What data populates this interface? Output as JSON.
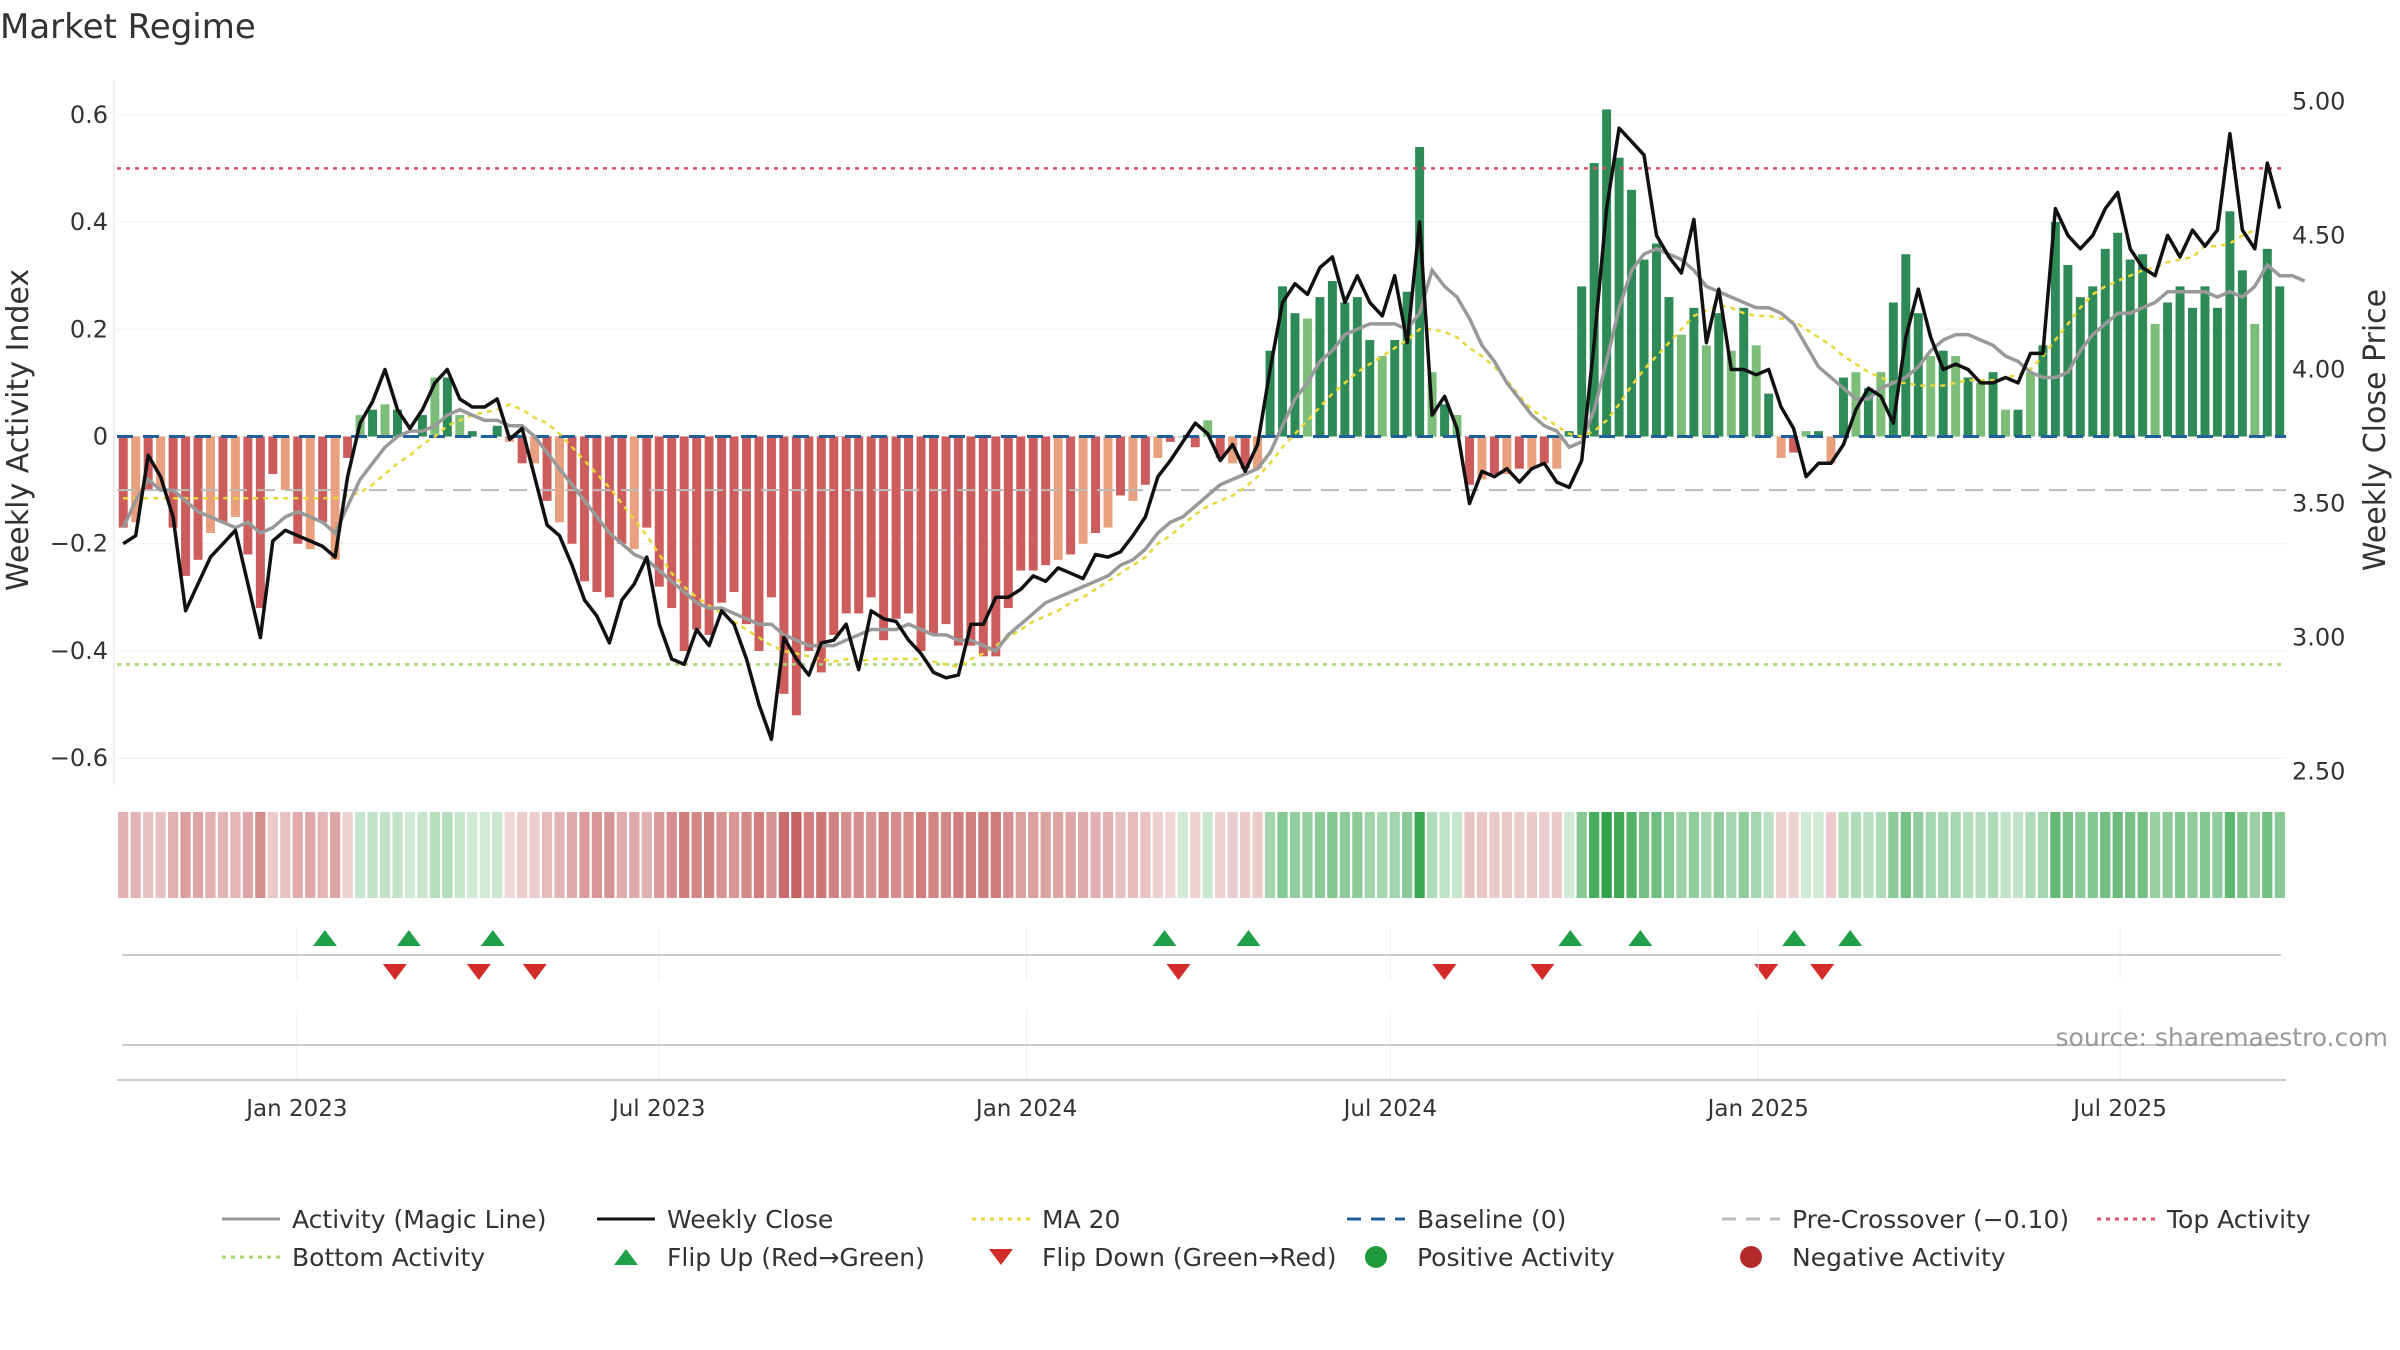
{
  "chart_data": {
    "type": "bar",
    "title": "Market Regime",
    "ylabel_left": "Weekly Activity Index",
    "ylabel_right": "Weekly Close Price",
    "ylim_left": [
      -0.65,
      0.65
    ],
    "yticks_left": [
      "0.6",
      "0.4",
      "0.2",
      "0",
      "−0.2",
      "−0.4",
      "−0.6"
    ],
    "ylim_right": [
      2.45,
      5.05
    ],
    "yticks_right": [
      "5.00",
      "4.50",
      "4.00",
      "3.50",
      "3.00",
      "2.50"
    ],
    "x_start": "2022-10-03",
    "x_end": "2025-09-22",
    "x_ticks": [
      "Jan 2023",
      "Jul 2023",
      "Jan 2024",
      "Jul 2024",
      "Jan 2025",
      "Jul 2025"
    ],
    "x_tick_dates": [
      "2023-01-01",
      "2023-07-01",
      "2024-01-01",
      "2024-07-01",
      "2025-01-01",
      "2025-07-01"
    ],
    "top_activity": 0.5,
    "bottom_activity": -0.425,
    "baseline": 0,
    "pre_crossover": -0.1,
    "activity": [
      -0.17,
      -0.16,
      -0.1,
      -0.1,
      -0.17,
      -0.26,
      -0.23,
      -0.18,
      -0.16,
      -0.15,
      -0.22,
      -0.32,
      -0.07,
      -0.1,
      -0.2,
      -0.21,
      -0.16,
      -0.23,
      -0.04,
      0.04,
      0.05,
      0.06,
      0.05,
      0.0,
      0.04,
      0.11,
      0.11,
      0.04,
      0.01,
      0.0,
      0.02,
      -0.01,
      -0.05,
      -0.05,
      -0.12,
      -0.16,
      -0.2,
      -0.27,
      -0.29,
      -0.3,
      -0.2,
      -0.21,
      -0.17,
      -0.28,
      -0.32,
      -0.4,
      -0.36,
      -0.37,
      -0.31,
      -0.29,
      -0.35,
      -0.4,
      -0.3,
      -0.48,
      -0.52,
      -0.4,
      -0.44,
      -0.37,
      -0.33,
      -0.33,
      -0.3,
      -0.38,
      -0.34,
      -0.33,
      -0.4,
      -0.37,
      -0.35,
      -0.39,
      -0.39,
      -0.41,
      -0.41,
      -0.32,
      -0.25,
      -0.25,
      -0.24,
      -0.23,
      -0.22,
      -0.2,
      -0.18,
      -0.17,
      -0.11,
      -0.12,
      -0.09,
      -0.04,
      -0.01,
      0.0,
      -0.02,
      0.03,
      -0.04,
      -0.05,
      -0.06,
      -0.06,
      0.16,
      0.28,
      0.23,
      0.22,
      0.26,
      0.29,
      0.25,
      0.26,
      0.18,
      0.15,
      0.18,
      0.27,
      0.54,
      0.12,
      0.06,
      0.04,
      -0.09,
      -0.08,
      -0.07,
      -0.07,
      -0.06,
      -0.06,
      -0.05,
      -0.06,
      0.01,
      0.28,
      0.51,
      0.61,
      0.52,
      0.46,
      0.33,
      0.36,
      0.26,
      0.19,
      0.24,
      0.17,
      0.23,
      0.16,
      0.24,
      0.17,
      0.08,
      -0.04,
      -0.03,
      0.01,
      0.01,
      -0.05,
      0.11,
      0.12,
      0.09,
      0.12,
      0.25,
      0.34,
      0.23,
      0.15,
      0.16,
      0.15,
      0.11,
      0.1,
      0.12,
      0.05,
      0.05,
      0.12,
      0.17,
      0.4,
      0.32,
      0.26,
      0.28,
      0.35,
      0.38,
      0.33,
      0.34,
      0.21,
      0.25,
      0.28,
      0.24,
      0.28,
      0.24,
      0.42,
      0.31,
      0.21,
      0.35,
      0.28
    ],
    "magic_line": [
      -0.17,
      -0.12,
      -0.08,
      -0.1,
      -0.1,
      -0.12,
      -0.14,
      -0.15,
      -0.16,
      -0.17,
      -0.16,
      -0.18,
      -0.17,
      -0.15,
      -0.14,
      -0.15,
      -0.16,
      -0.18,
      -0.13,
      -0.08,
      -0.05,
      -0.02,
      0.0,
      0.01,
      0.01,
      0.02,
      0.04,
      0.05,
      0.04,
      0.03,
      0.03,
      0.02,
      0.02,
      0.0,
      -0.03,
      -0.06,
      -0.09,
      -0.12,
      -0.15,
      -0.18,
      -0.2,
      -0.22,
      -0.23,
      -0.25,
      -0.27,
      -0.29,
      -0.31,
      -0.32,
      -0.32,
      -0.33,
      -0.34,
      -0.35,
      -0.35,
      -0.37,
      -0.38,
      -0.39,
      -0.39,
      -0.39,
      -0.38,
      -0.37,
      -0.36,
      -0.36,
      -0.36,
      -0.35,
      -0.36,
      -0.37,
      -0.37,
      -0.38,
      -0.38,
      -0.39,
      -0.4,
      -0.37,
      -0.35,
      -0.33,
      -0.31,
      -0.3,
      -0.29,
      -0.28,
      -0.27,
      -0.26,
      -0.24,
      -0.23,
      -0.21,
      -0.18,
      -0.16,
      -0.15,
      -0.13,
      -0.11,
      -0.09,
      -0.08,
      -0.07,
      -0.06,
      -0.03,
      0.02,
      0.07,
      0.1,
      0.14,
      0.16,
      0.19,
      0.2,
      0.21,
      0.21,
      0.21,
      0.2,
      0.23,
      0.31,
      0.28,
      0.26,
      0.22,
      0.17,
      0.14,
      0.1,
      0.07,
      0.04,
      0.02,
      0.01,
      -0.02,
      -0.01,
      0.05,
      0.14,
      0.24,
      0.31,
      0.34,
      0.35,
      0.34,
      0.33,
      0.31,
      0.28,
      0.27,
      0.26,
      0.25,
      0.24,
      0.24,
      0.23,
      0.21,
      0.17,
      0.13,
      0.11,
      0.09,
      0.07,
      0.07,
      0.09,
      0.1,
      0.11,
      0.13,
      0.16,
      0.18,
      0.19,
      0.19,
      0.18,
      0.17,
      0.15,
      0.14,
      0.12,
      0.11,
      0.11,
      0.12,
      0.16,
      0.19,
      0.21,
      0.23,
      0.23,
      0.24,
      0.25,
      0.27,
      0.27,
      0.27,
      0.27,
      0.26,
      0.27,
      0.26,
      0.28,
      0.32,
      0.3,
      0.3,
      0.29
    ],
    "weekly_close": [
      3.35,
      3.38,
      3.68,
      3.6,
      3.45,
      3.1,
      3.2,
      3.3,
      3.35,
      3.4,
      3.2,
      3.0,
      3.36,
      3.4,
      3.38,
      3.36,
      3.34,
      3.3,
      3.6,
      3.8,
      3.88,
      4.0,
      3.85,
      3.78,
      3.85,
      3.95,
      4.0,
      3.89,
      3.86,
      3.86,
      3.89,
      3.74,
      3.78,
      3.6,
      3.42,
      3.38,
      3.27,
      3.14,
      3.08,
      2.98,
      3.14,
      3.2,
      3.3,
      3.05,
      2.92,
      2.9,
      3.03,
      2.97,
      3.1,
      3.05,
      2.92,
      2.75,
      2.62,
      3.0,
      2.92,
      2.86,
      2.98,
      2.99,
      3.05,
      2.88,
      3.1,
      3.07,
      3.06,
      2.99,
      2.94,
      2.87,
      2.85,
      2.86,
      3.05,
      3.05,
      3.15,
      3.15,
      3.18,
      3.23,
      3.21,
      3.26,
      3.24,
      3.22,
      3.31,
      3.3,
      3.32,
      3.38,
      3.45,
      3.6,
      3.66,
      3.73,
      3.8,
      3.76,
      3.66,
      3.72,
      3.62,
      3.72,
      4.0,
      4.25,
      4.32,
      4.28,
      4.38,
      4.42,
      4.25,
      4.35,
      4.25,
      4.2,
      4.35,
      4.1,
      4.55,
      3.83,
      3.9,
      3.78,
      3.5,
      3.62,
      3.6,
      3.63,
      3.58,
      3.63,
      3.65,
      3.58,
      3.56,
      3.66,
      4.1,
      4.6,
      4.9,
      4.85,
      4.8,
      4.5,
      4.42,
      4.36,
      4.56,
      4.1,
      4.3,
      4.0,
      4.0,
      3.98,
      4.0,
      3.86,
      3.78,
      3.6,
      3.65,
      3.65,
      3.72,
      3.85,
      3.93,
      3.9,
      3.8,
      4.12,
      4.3,
      4.12,
      4.0,
      4.02,
      4.0,
      3.95,
      3.95,
      3.97,
      3.95,
      4.06,
      4.06,
      4.6,
      4.5,
      4.45,
      4.5,
      4.6,
      4.66,
      4.45,
      4.38,
      4.35,
      4.5,
      4.42,
      4.52,
      4.46,
      4.52,
      4.88,
      4.52,
      4.45,
      4.77,
      4.6
    ],
    "ma20": [
      3.52,
      3.52,
      3.52,
      3.52,
      3.52,
      3.52,
      3.52,
      3.52,
      3.52,
      3.52,
      3.52,
      3.52,
      3.52,
      3.52,
      3.52,
      3.52,
      3.52,
      3.52,
      3.53,
      3.54,
      3.57,
      3.61,
      3.65,
      3.68,
      3.72,
      3.75,
      3.79,
      3.81,
      3.83,
      3.84,
      3.85,
      3.87,
      3.85,
      3.82,
      3.8,
      3.76,
      3.71,
      3.66,
      3.61,
      3.56,
      3.5,
      3.44,
      3.38,
      3.31,
      3.24,
      3.19,
      3.15,
      3.12,
      3.09,
      3.06,
      3.03,
      3.0,
      2.97,
      2.95,
      2.94,
      2.93,
      2.92,
      2.91,
      2.92,
      2.91,
      2.92,
      2.92,
      2.92,
      2.92,
      2.92,
      2.91,
      2.9,
      2.89,
      2.92,
      2.94,
      2.97,
      3.0,
      3.03,
      3.06,
      3.08,
      3.1,
      3.13,
      3.15,
      3.18,
      3.21,
      3.24,
      3.27,
      3.3,
      3.35,
      3.38,
      3.42,
      3.46,
      3.49,
      3.51,
      3.53,
      3.56,
      3.6,
      3.65,
      3.71,
      3.76,
      3.81,
      3.86,
      3.91,
      3.95,
      3.99,
      4.02,
      4.05,
      4.08,
      4.11,
      4.15,
      4.15,
      4.14,
      4.12,
      4.08,
      4.05,
      4.01,
      3.96,
      3.9,
      3.85,
      3.82,
      3.79,
      3.76,
      3.75,
      3.77,
      3.81,
      3.87,
      3.94,
      4.0,
      4.05,
      4.1,
      4.15,
      4.2,
      4.22,
      4.24,
      4.23,
      4.21,
      4.2,
      4.2,
      4.19,
      4.18,
      4.15,
      4.12,
      4.09,
      4.05,
      4.02,
      3.99,
      3.97,
      3.95,
      3.95,
      3.94,
      3.94,
      3.94,
      3.95,
      3.96,
      3.96,
      3.96,
      3.97,
      3.98,
      4.0,
      4.05,
      4.11,
      4.17,
      4.23,
      4.28,
      4.31,
      4.33,
      4.35,
      4.37,
      4.38,
      4.4,
      4.41,
      4.42,
      4.46,
      4.46,
      4.47,
      4.5,
      4.52
    ],
    "flip_up_dates": [
      "2023-01-15",
      "2023-02-26",
      "2023-04-09",
      "2024-03-10",
      "2024-04-21",
      "2024-09-29",
      "2024-11-03",
      "2025-01-19",
      "2025-02-16"
    ],
    "flip_down_dates": [
      "2023-02-19",
      "2023-04-02",
      "2023-04-30",
      "2024-03-17",
      "2024-07-28",
      "2024-09-15",
      "2025-01-05",
      "2025-02-02"
    ],
    "legend": [
      {
        "label": "Activity (Magic Line)",
        "color": "#999999",
        "style": "solid"
      },
      {
        "label": "Weekly Close",
        "color": "#111111",
        "style": "solid"
      },
      {
        "label": "MA 20",
        "color": "#e8d83a",
        "style": "dotted"
      },
      {
        "label": "Baseline (0)",
        "color": "#1f5f9a",
        "style": "dashed"
      },
      {
        "label": "Pre-Crossover (−0.10)",
        "color": "#bbbbbb",
        "style": "dashed"
      },
      {
        "label": "Top Activity",
        "color": "#d9536b",
        "style": "dotted"
      },
      {
        "label": "Bottom Activity",
        "color": "#a4d86a",
        "style": "dotted"
      },
      {
        "label": "Flip Up (Red→Green)",
        "color": "#21a04a",
        "style": "triangle-up"
      },
      {
        "label": "Flip Down (Green→Red)",
        "color": "#d32a2a",
        "style": "triangle-down"
      },
      {
        "label": "Positive Activity",
        "color": "#1f9a3a",
        "style": "circle"
      },
      {
        "label": "Negative Activity",
        "color": "#b22a2a",
        "style": "circle"
      }
    ],
    "source": "source: sharemaestro.com"
  },
  "colors": {
    "pos_dark": "#2e8b57",
    "pos_light": "#7dbd7a",
    "neg_dark": "#cd5c5c",
    "neg_light": "#e9a07e"
  }
}
